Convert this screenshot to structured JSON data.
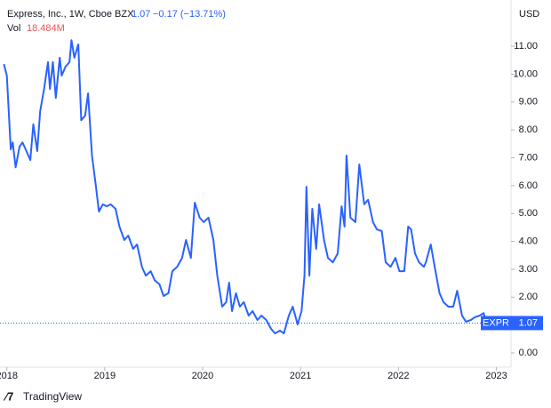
{
  "chart_data": {
    "type": "line",
    "title": "Express, Inc., 1W, Cboe BZX",
    "last": "1.07",
    "change": "−0.17 (−13.71%)",
    "volume_label": "Vol",
    "volume_value": "18.484M",
    "currency": "USD",
    "symbol": "EXPR",
    "last_value": {
      "value": 1.07,
      "label": "1.07"
    },
    "brand": "TradingView",
    "color": "#2962ff",
    "x": [
      2017.97,
      2018.0,
      2018.04,
      2018.06,
      2018.09,
      2018.13,
      2018.16,
      2018.2,
      2018.24,
      2018.27,
      2018.31,
      2018.34,
      2018.38,
      2018.42,
      2018.44,
      2018.47,
      2018.5,
      2018.54,
      2018.56,
      2018.6,
      2018.64,
      2018.66,
      2018.69,
      2018.73,
      2018.76,
      2018.8,
      2018.83,
      2018.87,
      2018.91,
      2018.94,
      2018.98,
      2019.02,
      2019.06,
      2019.11,
      2019.15,
      2019.2,
      2019.24,
      2019.29,
      2019.33,
      2019.38,
      2019.42,
      2019.47,
      2019.51,
      2019.56,
      2019.6,
      2019.65,
      2019.69,
      2019.74,
      2019.79,
      2019.83,
      2019.88,
      2019.92,
      2019.97,
      2020.01,
      2020.06,
      2020.11,
      2020.15,
      2020.2,
      2020.24,
      2020.27,
      2020.3,
      2020.34,
      2020.38,
      2020.42,
      2020.47,
      2020.51,
      2020.56,
      2020.6,
      2020.65,
      2020.7,
      2020.74,
      2020.79,
      2020.83,
      2020.88,
      2020.92,
      2020.97,
      2021.01,
      2021.04,
      2021.06,
      2021.09,
      2021.12,
      2021.16,
      2021.19,
      2021.24,
      2021.28,
      2021.33,
      2021.38,
      2021.42,
      2021.45,
      2021.47,
      2021.51,
      2021.56,
      2021.6,
      2021.65,
      2021.69,
      2021.74,
      2021.78,
      2021.83,
      2021.87,
      2021.92,
      2021.97,
      2022.01,
      2022.06,
      2022.1,
      2022.13,
      2022.17,
      2022.21,
      2022.26,
      2022.28,
      2022.33,
      2022.37,
      2022.42,
      2022.46,
      2022.51,
      2022.56,
      2022.6,
      2022.65,
      2022.69,
      2022.74,
      2022.78,
      2022.83,
      2022.87,
      2022.9
    ],
    "values": [
      10.36,
      9.95,
      7.3,
      7.55,
      6.66,
      7.4,
      7.55,
      7.24,
      6.92,
      8.2,
      7.24,
      8.67,
      9.47,
      10.43,
      9.47,
      10.43,
      9.15,
      10.59,
      9.95,
      10.27,
      10.43,
      11.22,
      10.59,
      11.07,
      8.35,
      8.51,
      9.31,
      7.08,
      5.96,
      5.07,
      5.33,
      5.26,
      5.33,
      5.17,
      4.53,
      4.05,
      4.21,
      3.73,
      3.89,
      3.09,
      2.77,
      2.93,
      2.61,
      2.46,
      2.04,
      2.14,
      2.93,
      3.09,
      3.41,
      4.05,
      3.41,
      5.39,
      4.85,
      4.69,
      4.85,
      4.05,
      2.77,
      1.66,
      1.82,
      2.52,
      1.5,
      2.14,
      1.66,
      1.82,
      1.34,
      1.5,
      1.18,
      1.34,
      1.18,
      0.86,
      0.7,
      0.8,
      0.7,
      1.34,
      1.66,
      1.02,
      1.5,
      2.77,
      5.96,
      2.77,
      5.17,
      3.73,
      5.33,
      4.05,
      3.41,
      3.25,
      3.57,
      5.26,
      4.53,
      7.08,
      4.85,
      4.69,
      6.76,
      5.33,
      5.49,
      4.69,
      4.43,
      4.37,
      3.25,
      3.09,
      3.41,
      2.93,
      2.93,
      4.53,
      4.43,
      3.57,
      3.25,
      3.09,
      3.25,
      3.89,
      3.09,
      2.14,
      1.82,
      1.66,
      1.66,
      2.23,
      1.34,
      1.12,
      1.18,
      1.28,
      1.34,
      1.43,
      1.05
    ],
    "xlim": [
      2017.93,
      2023.15
    ],
    "xticks": [
      2018,
      2019,
      2020,
      2021,
      2022,
      2023
    ],
    "ylim": [
      -0.51,
      12.66
    ],
    "yticks": [
      {
        "value": 0,
        "label": "0.00"
      },
      {
        "value": 2,
        "label": "2.00"
      },
      {
        "value": 3,
        "label": "3.00"
      },
      {
        "value": 4,
        "label": "4.00"
      },
      {
        "value": 5,
        "label": "5.00"
      },
      {
        "value": 6,
        "label": "6.00"
      },
      {
        "value": 7,
        "label": "7.00"
      },
      {
        "value": 8,
        "label": "8.00"
      },
      {
        "value": 9,
        "label": "9.00"
      },
      {
        "value": 10,
        "label": "10.00"
      },
      {
        "value": 11,
        "label": "11.00"
      }
    ]
  }
}
